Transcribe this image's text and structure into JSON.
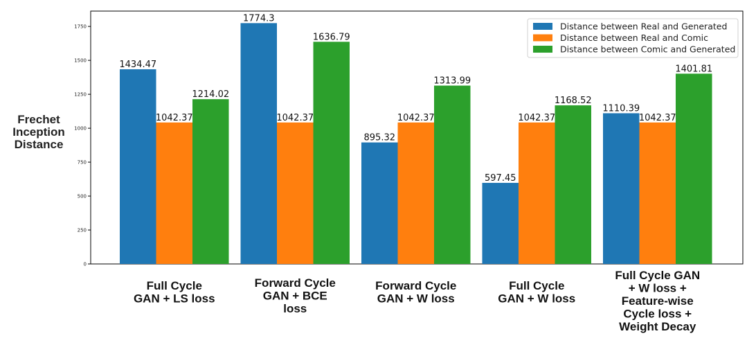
{
  "chart_data": {
    "type": "bar",
    "ylabel_lines": [
      "Frechet",
      "Inception",
      "Distance"
    ],
    "categories": [
      [
        "Full Cycle",
        "GAN + LS loss"
      ],
      [
        "Forward Cycle",
        "GAN + BCE",
        "loss"
      ],
      [
        "Forward Cycle",
        "GAN + W loss"
      ],
      [
        "Full Cycle",
        "GAN + W loss"
      ],
      [
        "Full Cycle GAN",
        "+ W loss +",
        "Feature-wise",
        "Cycle loss +",
        "Weight Decay"
      ]
    ],
    "series": [
      {
        "name": "Distance between Real and Generated",
        "color": "#1f77b4",
        "values": [
          1434.47,
          1774.3,
          895.32,
          597.45,
          1110.39
        ],
        "labels": [
          "1434.47",
          "1774.3",
          "895.32",
          "597.45",
          "1110.39"
        ]
      },
      {
        "name": "Distance between Real and Comic",
        "color": "#ff7f0e",
        "values": [
          1042.37,
          1042.37,
          1042.37,
          1042.37,
          1042.37
        ],
        "labels": [
          "1042.37",
          "1042.37",
          "1042.37",
          "1042.37",
          "1042.37"
        ]
      },
      {
        "name": "Distance between Comic and Generated",
        "color": "#2ca02c",
        "values": [
          1214.02,
          1636.79,
          1313.99,
          1168.52,
          1401.81
        ],
        "labels": [
          "1214.02",
          "1636.79",
          "1313.99",
          "1168.52",
          "1401.81"
        ]
      }
    ],
    "yticks": [
      0,
      250,
      500,
      750,
      1000,
      1250,
      1500,
      1750
    ],
    "ylim": [
      0,
      1863
    ],
    "legend_position": "top-right",
    "grid": false
  }
}
